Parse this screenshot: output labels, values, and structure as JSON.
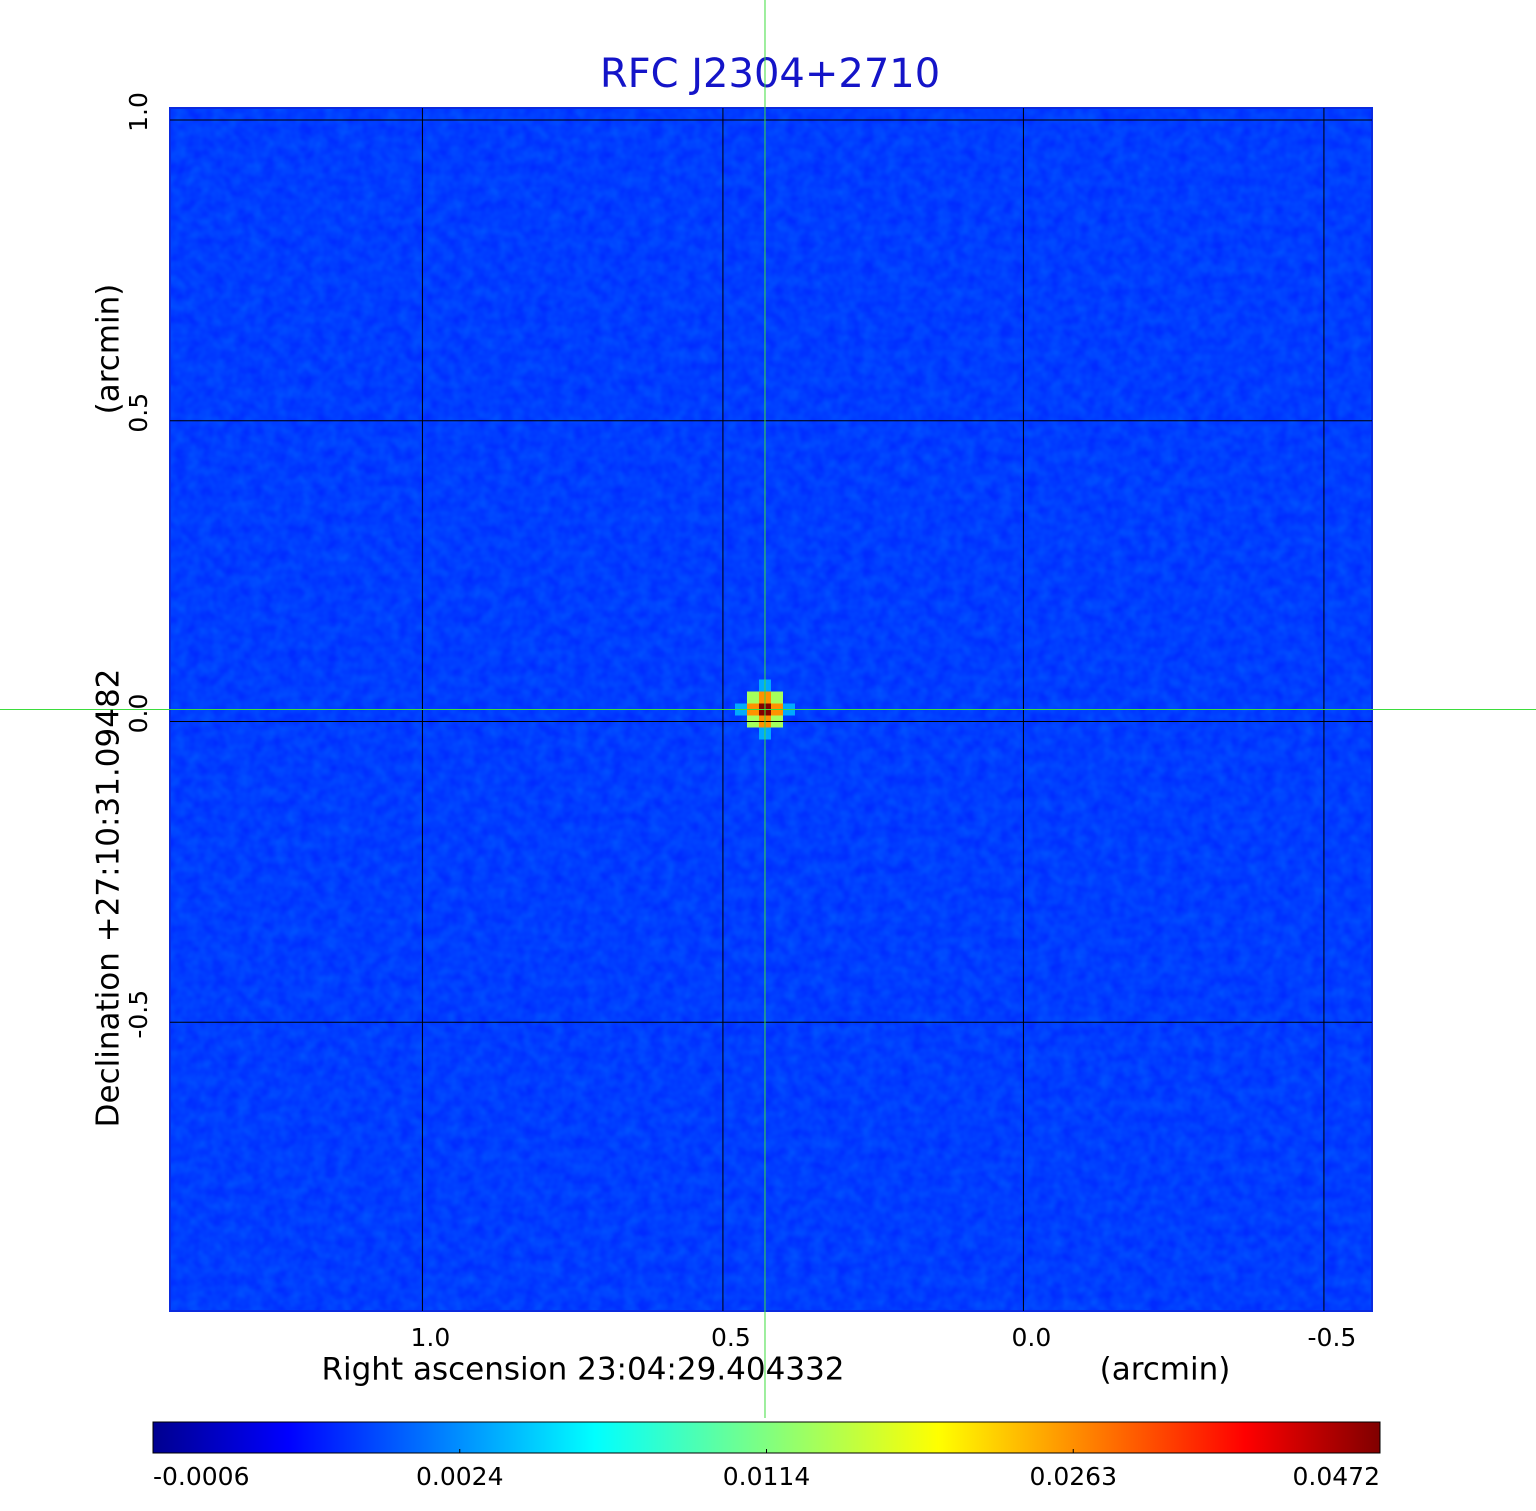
{
  "chart_data": {
    "type": "image",
    "title": "RFC J2304+2710",
    "x_label": "Right ascension  23:04:29.404332",
    "x_unit": "(arcmin)",
    "y_label": "Declination  +27:10:31.09482",
    "y_unit": "(arcmin)",
    "xlim": [
      1.42,
      -0.58
    ],
    "ylim": [
      -0.98,
      1.02
    ],
    "xticks": [
      {
        "value": 1,
        "label": "1.0"
      },
      0.5,
      {
        "value": 0,
        "label": "0.0"
      },
      -0.5
    ],
    "yticks": [
      {
        "value": 1,
        "label": "1.0"
      },
      0.5,
      {
        "value": 0,
        "label": "0.0"
      },
      -0.5
    ],
    "grid": true,
    "colormap": "jet",
    "colorbar_ticks": [
      -0.0006,
      0.0024,
      0.0114,
      0.0263,
      0.0472
    ],
    "background_level": 0.0014,
    "source": {
      "x": 0.43,
      "y": 0.02,
      "peak": 0.0472
    }
  }
}
